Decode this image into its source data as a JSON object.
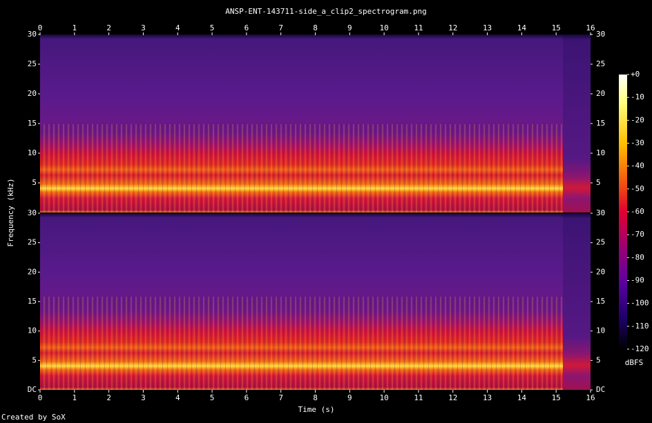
{
  "chart_data": {
    "type": "spectrogram",
    "title": "ANSP-ENT-143711-side_a_clip2_spectrogram.png",
    "x_label": "Time (s)",
    "y_label": "Frequency (kHz)",
    "xlim": [
      0,
      16
    ],
    "xticks": [
      0,
      1,
      2,
      3,
      4,
      5,
      6,
      7,
      8,
      9,
      10,
      11,
      12,
      13,
      14,
      15,
      16
    ],
    "channels": [
      {
        "ylim": [
          0,
          30
        ],
        "yticks": [
          5,
          10,
          15,
          20,
          25,
          30
        ]
      },
      {
        "ylim": [
          0,
          30
        ],
        "yticks": [
          {
            "value": 0,
            "label": "DC"
          },
          5,
          10,
          15,
          20,
          25,
          30
        ]
      }
    ],
    "colorbar": {
      "label": "dBFS",
      "lim": [
        -120,
        0
      ],
      "ticks": [
        {
          "value": 0,
          "label": "+0"
        },
        -10,
        -20,
        -30,
        -40,
        -50,
        -60,
        -70,
        -80,
        -90,
        -100,
        -110,
        -120
      ]
    },
    "footer": "Created by SoX"
  }
}
